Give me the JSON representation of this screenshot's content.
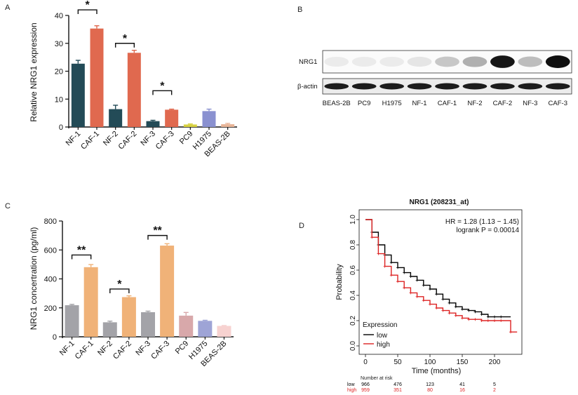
{
  "colors": {
    "nf": "#234b57",
    "caf": "#e0694f",
    "pc9": "#d8d242",
    "h1975": "#8a91d0",
    "beas": "#e8b598",
    "c_nf": "#a3a3a8",
    "c_caf": "#f0b278",
    "c_pc9": "#d8a8aa",
    "c_h1975": "#9ea4d6",
    "c_beas": "#f7d2d0",
    "km_low": "#000000",
    "km_high": "#dd2222"
  },
  "chart_data": [
    {
      "panel": "A",
      "type": "bar",
      "ylabel": "Relative NRG1 expression",
      "xlabel": "",
      "ylim": [
        0,
        40
      ],
      "yticks": [
        "0",
        "10",
        "20",
        "30",
        "40"
      ],
      "categories": [
        "NF-1",
        "CAF-1",
        "NF-2",
        "CAF-2",
        "NF-3",
        "CAF-3",
        "PC9",
        "H1975",
        "BEAS-2B"
      ],
      "values": [
        22.7,
        35.3,
        6.4,
        26.6,
        2.1,
        6.2,
        0.9,
        5.7,
        1.0
      ],
      "errors": [
        1.2,
        1.0,
        1.4,
        0.9,
        0.3,
        0.2,
        0.2,
        0.7,
        0.3
      ],
      "color_keys": [
        "nf",
        "caf",
        "nf",
        "caf",
        "nf",
        "caf",
        "pc9",
        "h1975",
        "beas"
      ],
      "annotations": [
        {
          "label": "*",
          "from": 0,
          "to": 1,
          "level": 42
        },
        {
          "label": "*",
          "from": 2,
          "to": 3,
          "level": 30
        },
        {
          "label": "*",
          "from": 4,
          "to": 5,
          "level": 13
        }
      ]
    },
    {
      "panel": "B",
      "type": "western-blot",
      "rows": [
        {
          "label": "NRG1",
          "intensities": [
            0.02,
            0.02,
            0.02,
            0.05,
            0.18,
            0.28,
            0.95,
            0.22,
            0.98
          ]
        },
        {
          "label": "β-actin",
          "intensities": [
            0.92,
            0.92,
            0.92,
            0.92,
            0.92,
            0.92,
            0.92,
            0.92,
            0.92
          ]
        }
      ],
      "lanes": [
        "BEAS-2B",
        "PC9",
        "H1975",
        "NF-1",
        "CAF-1",
        "NF-2",
        "CAF-2",
        "NF-3",
        "CAF-3"
      ]
    },
    {
      "panel": "C",
      "type": "bar",
      "ylabel": "NRG1 concertration (pg/ml)",
      "xlabel": "",
      "ylim": [
        0,
        800
      ],
      "yticks": [
        "0",
        "200",
        "400",
        "600",
        "800"
      ],
      "categories": [
        "NF-1",
        "CAF-1",
        "NF-2",
        "CAF-2",
        "NF-3",
        "CAF-3",
        "PC9",
        "H1975",
        "BEAS-2B"
      ],
      "values": [
        218,
        481,
        100,
        274,
        170,
        630,
        146,
        110,
        75
      ],
      "errors": [
        6,
        18,
        8,
        9,
        7,
        13,
        22,
        4,
        3
      ],
      "color_keys": [
        "c_nf",
        "c_caf",
        "c_nf",
        "c_caf",
        "c_nf",
        "c_caf",
        "c_pc9",
        "c_h1975",
        "c_beas"
      ],
      "annotations": [
        {
          "label": "**",
          "from": 0,
          "to": 1,
          "level": 565
        },
        {
          "label": "*",
          "from": 2,
          "to": 3,
          "level": 330
        },
        {
          "label": "**",
          "from": 4,
          "to": 5,
          "level": 700
        }
      ]
    },
    {
      "panel": "D",
      "type": "line",
      "title": "NRG1 (208231_at)",
      "xlabel": "Time (months)",
      "ylabel": "Probability",
      "xlim": [
        0,
        240
      ],
      "ylim": [
        0,
        1.0
      ],
      "xticks": [
        "0",
        "50",
        "100",
        "150",
        "200"
      ],
      "yticks": [
        "0.0",
        "0.2",
        "0.4",
        "0.6",
        "0.8",
        "1.0"
      ],
      "stats": [
        "HR = 1.28 (1.13 − 1.45)",
        "logrank P = 0.00014"
      ],
      "legend_title": "Expression",
      "series": [
        {
          "name": "low",
          "color_key": "km_low",
          "x": [
            0,
            10,
            20,
            30,
            40,
            50,
            60,
            70,
            80,
            90,
            100,
            110,
            120,
            130,
            140,
            150,
            160,
            170,
            180,
            190,
            200,
            210,
            225
          ],
          "y": [
            1.0,
            0.9,
            0.8,
            0.72,
            0.66,
            0.62,
            0.58,
            0.55,
            0.52,
            0.48,
            0.45,
            0.41,
            0.37,
            0.34,
            0.31,
            0.29,
            0.28,
            0.27,
            0.25,
            0.23,
            0.23,
            0.23,
            0.23
          ]
        },
        {
          "name": "high",
          "color_key": "km_high",
          "x": [
            0,
            10,
            20,
            30,
            40,
            50,
            60,
            70,
            80,
            90,
            100,
            110,
            120,
            130,
            140,
            150,
            160,
            170,
            180,
            190,
            200,
            210,
            225,
            235
          ],
          "y": [
            1.0,
            0.86,
            0.73,
            0.63,
            0.56,
            0.51,
            0.46,
            0.42,
            0.39,
            0.36,
            0.33,
            0.3,
            0.28,
            0.26,
            0.24,
            0.22,
            0.21,
            0.21,
            0.2,
            0.2,
            0.2,
            0.2,
            0.11,
            0.11
          ]
        }
      ],
      "risk_table": {
        "header": "Number at risk",
        "rows": [
          {
            "label": "low",
            "color_key": "km_low",
            "counts": [
              "966",
              "476",
              "123",
              "41",
              "5"
            ]
          },
          {
            "label": "high",
            "color_key": "km_high",
            "counts": [
              "959",
              "351",
              "80",
              "16",
              "2"
            ]
          }
        ]
      }
    }
  ],
  "panels": {
    "a": "A",
    "b": "B",
    "c": "C",
    "d": "D"
  }
}
